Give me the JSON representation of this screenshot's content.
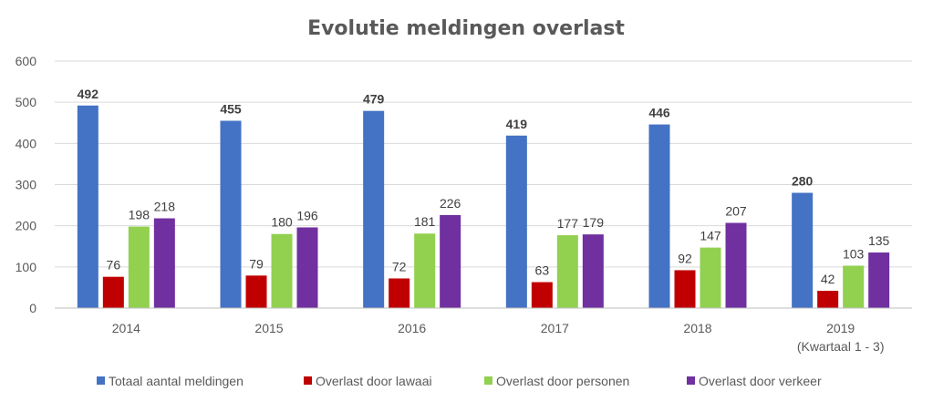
{
  "chart_data": {
    "type": "bar",
    "title": "Evolutie meldingen overlast",
    "xlabel": "",
    "ylabel": "",
    "ylim": [
      0,
      600
    ],
    "yticks": [
      0,
      100,
      200,
      300,
      400,
      500,
      600
    ],
    "grid": true,
    "legend_position": "bottom",
    "categories": [
      [
        "2014"
      ],
      [
        "2015"
      ],
      [
        "2016"
      ],
      [
        "2017"
      ],
      [
        "2018"
      ],
      [
        "2019",
        "(Kwartaal 1 - 3)"
      ]
    ],
    "series": [
      {
        "name": "Totaal aantal meldingen",
        "color": "#4472c4",
        "bold_labels": true,
        "values": [
          492,
          455,
          479,
          419,
          446,
          280
        ]
      },
      {
        "name": "Overlast door lawaai",
        "color": "#c00000",
        "bold_labels": false,
        "values": [
          76,
          79,
          72,
          63,
          92,
          42
        ]
      },
      {
        "name": "Overlast door personen",
        "color": "#92d050",
        "bold_labels": false,
        "values": [
          198,
          180,
          181,
          177,
          147,
          103
        ]
      },
      {
        "name": "Overlast door verkeer",
        "color": "#7030a0",
        "bold_labels": false,
        "values": [
          218,
          196,
          226,
          179,
          207,
          135
        ]
      }
    ]
  }
}
